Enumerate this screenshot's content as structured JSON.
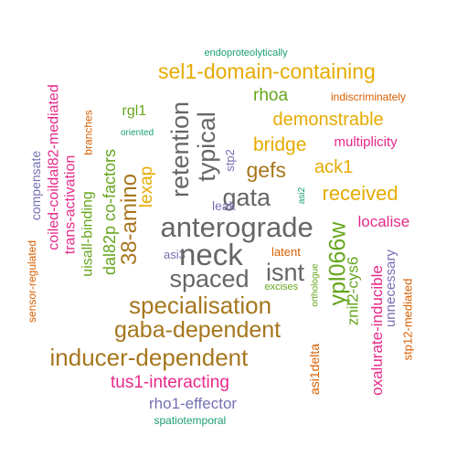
{
  "words": [
    {
      "text": "endoproteolytically",
      "color": "#1b9e77",
      "rotate": false
    },
    {
      "text": "sel1-domain-containing",
      "color": "#e6ab02",
      "rotate": false
    },
    {
      "text": "coiled-coildal82-mediated",
      "color": "#e7298a",
      "rotate": true
    },
    {
      "text": "branches",
      "color": "#d95f02",
      "rotate": true
    },
    {
      "text": "rhoa",
      "color": "#66a61e",
      "rotate": false
    },
    {
      "text": "indiscriminately",
      "color": "#d95f02",
      "rotate": false
    },
    {
      "text": "retention",
      "color": "#666666",
      "rotate": true
    },
    {
      "text": "rgl1",
      "color": "#66a61e",
      "rotate": false
    },
    {
      "text": "demonstrable",
      "color": "#e6ab02",
      "rotate": false
    },
    {
      "text": "typical",
      "color": "#666666",
      "rotate": true
    },
    {
      "text": "compensate",
      "color": "#7570b3",
      "rotate": true
    },
    {
      "text": "oriented",
      "color": "#1b9e77",
      "rotate": false
    },
    {
      "text": "bridge",
      "color": "#e6ab02",
      "rotate": false
    },
    {
      "text": "multiplicity",
      "color": "#e7298a",
      "rotate": false
    },
    {
      "text": "stp2",
      "color": "#7570b3",
      "rotate": true
    },
    {
      "text": "trans-activation",
      "color": "#e7298a",
      "rotate": true
    },
    {
      "text": "dal82p co-factors",
      "color": "#66a61e",
      "rotate": true
    },
    {
      "text": "gefs",
      "color": "#a6761d",
      "rotate": false
    },
    {
      "text": "ack1",
      "color": "#e6ab02",
      "rotate": false
    },
    {
      "text": "lexap",
      "color": "#e6ab02",
      "rotate": true
    },
    {
      "text": "uisall-binding",
      "color": "#66a61e",
      "rotate": true
    },
    {
      "text": "38-amino",
      "color": "#a6761d",
      "rotate": true
    },
    {
      "text": "gata",
      "color": "#666666",
      "rotate": false
    },
    {
      "text": "leak",
      "color": "#7570b3",
      "rotate": false
    },
    {
      "text": "asi2",
      "color": "#1b9e77",
      "rotate": true
    },
    {
      "text": "received",
      "color": "#e6ab02",
      "rotate": false
    },
    {
      "text": "anterograde",
      "color": "#666666",
      "rotate": false
    },
    {
      "text": "ypl066w",
      "color": "#66a61e",
      "rotate": true
    },
    {
      "text": "localise",
      "color": "#e7298a",
      "rotate": false
    },
    {
      "text": "sensor-regulated",
      "color": "#d95f02",
      "rotate": true
    },
    {
      "text": "asi3",
      "color": "#7570b3",
      "rotate": false
    },
    {
      "text": "neck",
      "color": "#666666",
      "rotate": false
    },
    {
      "text": "latent",
      "color": "#d95f02",
      "rotate": false
    },
    {
      "text": "znil2-cys6",
      "color": "#66a61e",
      "rotate": true
    },
    {
      "text": "unnecessary",
      "color": "#7570b3",
      "rotate": true
    },
    {
      "text": "isnt",
      "color": "#666666",
      "rotate": false
    },
    {
      "text": "orthologue",
      "color": "#66a61e",
      "rotate": true
    },
    {
      "text": "spaced",
      "color": "#666666",
      "rotate": false
    },
    {
      "text": "excises",
      "color": "#66a61e",
      "rotate": false
    },
    {
      "text": "stp12-mediated",
      "color": "#d95f02",
      "rotate": true
    },
    {
      "text": "specialisation",
      "color": "#a6761d",
      "rotate": false
    },
    {
      "text": "oxalurate-inducible",
      "color": "#e7298a",
      "rotate": true
    },
    {
      "text": "gaba-dependent",
      "color": "#a6761d",
      "rotate": false
    },
    {
      "text": "inducer-dependent",
      "color": "#a6761d",
      "rotate": false
    },
    {
      "text": "asi1delta",
      "color": "#d95f02",
      "rotate": true
    },
    {
      "text": "tus1-interacting",
      "color": "#e7298a",
      "rotate": false
    },
    {
      "text": "rho1-effector",
      "color": "#7570b3",
      "rotate": false
    },
    {
      "text": "spatiotemporal",
      "color": "#1b9e77",
      "rotate": false
    }
  ]
}
